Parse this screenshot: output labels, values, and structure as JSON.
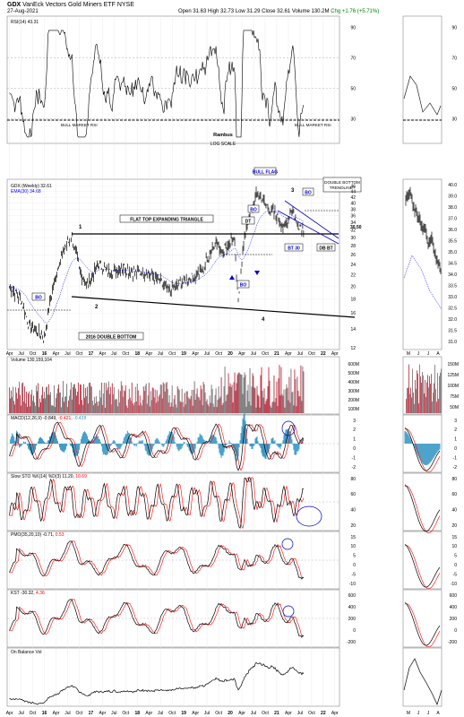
{
  "header": {
    "symbol": "GDX",
    "name": "VanEck Vectors Gold Miners ETF",
    "exchange": "NYSE",
    "date": "27-Aug-2021",
    "open": "Open 31.63",
    "high": "High 32.73",
    "low": "Low 31.29",
    "close": "Close 32.61",
    "volume": "Volume 130.2M",
    "change": "Chg +1.76 (+5.71%)",
    "change_color": "#008000"
  },
  "panels": {
    "rsi": {
      "label": "RSI(14) 43.31",
      "ticks": [
        "90",
        "70",
        "50",
        "30"
      ],
      "ticks_right": [
        "90",
        "70",
        "50",
        "30"
      ],
      "levels": {
        "ob": 70,
        "os": 30,
        "bull": 35
      }
    },
    "price": {
      "label_main": "GDX (Weekly) 32.61",
      "label_ema": "EMA(30) 34.68",
      "ticks": [
        "46",
        "44",
        "42",
        "40",
        "38",
        "36",
        "34",
        "32",
        "30",
        "28",
        "26",
        "24",
        "22",
        "20",
        "18",
        "16",
        "14",
        "12"
      ],
      "ticks_right": [
        "40.0",
        "39.0",
        "38.0",
        "37.0",
        "36.0",
        "35.5",
        "35.0",
        "34.5",
        "34.0",
        "33.5",
        "33.0",
        "32.5",
        "32.0",
        "31.5",
        "31.0"
      ]
    },
    "volume": {
      "label": "Volume 130,159,104",
      "ticks": [
        "600M",
        "500M",
        "400M",
        "300M",
        "200M",
        "100M"
      ],
      "ticks_right": [
        "150M",
        "125M",
        "100M",
        "75M",
        "50M"
      ]
    },
    "macd": {
      "label_a": "MACD(12,26,9)",
      "val1": "-0.849,",
      "val2": "-0.421,",
      "val3": "-0.428",
      "ticks": [
        "3",
        "2",
        "1",
        "0",
        "-1",
        "-2"
      ],
      "ticks_right": [
        "3",
        "2",
        "1",
        "0",
        "-1",
        "-2"
      ]
    },
    "sto": {
      "label_a": "Slow STO %K(14) %D(3)",
      "val1": "11.20,",
      "val2": "10.69",
      "ticks": [
        "80",
        "60",
        "40",
        "20"
      ],
      "ticks_right": [
        "80",
        "60",
        "40",
        "20"
      ]
    },
    "pmo": {
      "label_a": "PMO(35,20,10)",
      "val1": "-0.71,",
      "val2": "0.53",
      "ticks": [
        "15",
        "10",
        "5",
        "0",
        "-5",
        "-10"
      ],
      "ticks_right": [
        "15",
        "10",
        "5",
        "0",
        "-5",
        "-10"
      ]
    },
    "kst": {
      "label_a": "KST",
      "val1": "-30.32,",
      "val2": "4.36",
      "ticks": [
        "600",
        "400",
        "200",
        "0",
        "-200"
      ],
      "ticks_right": [
        "600",
        "400",
        "200",
        "0",
        "-200"
      ]
    },
    "obv": {
      "label": "On Balance Vol"
    }
  },
  "annotations": {
    "bull_market_rsi_left": "BULL MARKET RSI",
    "bull_market_rsi_right": "BULL MARKET RSI",
    "rambus": "Rambus",
    "log_scale": "LOG SCALE",
    "bull_flag": "BULL FLAG",
    "flat_top": "FLAT TOP EXPANDING TRIANGLE",
    "double_bottom_trendline": [
      "DOUBLE BOTTOM",
      "TRENDLINE?"
    ],
    "dt": "DT",
    "bo": "BO",
    "bt30": "BT 30",
    "dbbt": "DB BT",
    "price_level": "30.50",
    "double_bottom_2016": "2016 DOUBLE BOTTOM",
    "p1": "1",
    "p2": "2",
    "p3": "3",
    "p4": "4"
  },
  "x_axis": {
    "labels": [
      "Apr",
      "Jul",
      "Oct",
      "16",
      "Apr",
      "Jul",
      "Oct",
      "17",
      "Apr",
      "Jul",
      "Oct",
      "18",
      "Apr",
      "Jul",
      "Oct",
      "19",
      "Apr",
      "Jul",
      "Oct",
      "20",
      "Apr",
      "Jul",
      "Oct",
      "21",
      "Apr",
      "Jul",
      "Oct",
      "22",
      "Apr"
    ],
    "labels_right": [
      "M",
      "J",
      "J",
      "A"
    ]
  },
  "chart_data": {
    "type": "line",
    "title": "GDX VanEck Vectors Gold Miners ETF NYSE",
    "x_range": [
      "2015-03",
      "2022-04"
    ],
    "price_series": {
      "name": "GDX (Weekly)",
      "dates": [
        "2015-04",
        "2015-07",
        "2015-09",
        "2015-12",
        "2016-01",
        "2016-03",
        "2016-05",
        "2016-08",
        "2016-10",
        "2016-12",
        "2017-03",
        "2017-06",
        "2017-09",
        "2017-12",
        "2018-03",
        "2018-06",
        "2018-09",
        "2018-12",
        "2019-03",
        "2019-06",
        "2019-09",
        "2019-11",
        "2020-02",
        "2020-03",
        "2020-05",
        "2020-08",
        "2020-11",
        "2021-01",
        "2021-03",
        "2021-05",
        "2021-06",
        "2021-08"
      ],
      "values": [
        20,
        18,
        14.5,
        13.5,
        13,
        19,
        25,
        30.5,
        23,
        20,
        24,
        22.5,
        23.5,
        22.5,
        22.5,
        21.5,
        19,
        20.5,
        21.5,
        23,
        29,
        27,
        30,
        17,
        32,
        43.5,
        38,
        36,
        32,
        38.5,
        34,
        32.6
      ]
    },
    "ema30": {
      "name": "EMA(30)",
      "last": 34.68
    },
    "rsi": {
      "name": "RSI(14)",
      "last": 43.31
    },
    "volume_last": 130159104,
    "macd": {
      "macd": -0.849,
      "signal": -0.421,
      "hist": -0.428
    },
    "slow_sto": {
      "k": 11.2,
      "d": 10.69
    },
    "pmo": {
      "pmo": -0.71,
      "signal": 0.53
    },
    "kst": {
      "kst": -30.32,
      "signal": 4.36
    },
    "ylim_price": [
      12,
      46
    ],
    "scale": "log",
    "colors": {
      "price": "#000000",
      "ema": "#0000ff",
      "signal": "#ff0000",
      "volume_up": "#808080",
      "volume_down": "#c04050",
      "macd_hist": "#3b9ac6",
      "annotation": "#0000cc"
    }
  }
}
